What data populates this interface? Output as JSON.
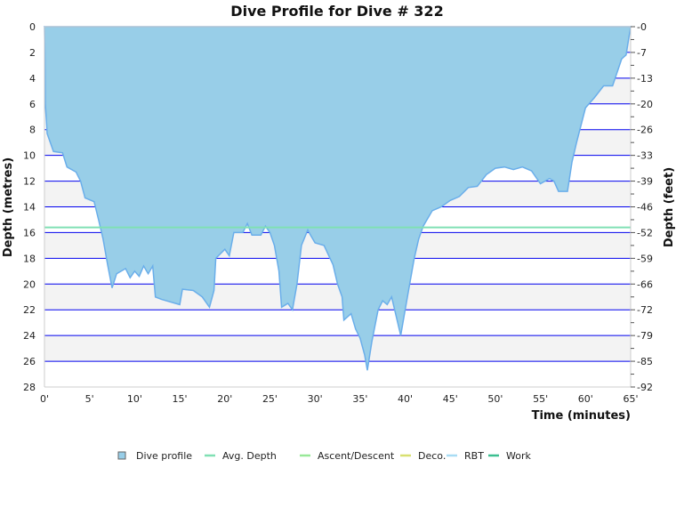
{
  "chart_data": {
    "type": "area",
    "title": "Dive Profile for Dive # 322",
    "xlabel": "Time (minutes)",
    "ylabel": "Depth (metres)",
    "ylabel_right": "Depth (feet)",
    "xlim": [
      0,
      65
    ],
    "ylim": [
      0,
      28
    ],
    "y_inverted": true,
    "x_ticks": [
      "0'",
      "5'",
      "10'",
      "15'",
      "20'",
      "25'",
      "30'",
      "35'",
      "40'",
      "45'",
      "50'",
      "55'",
      "60'",
      "65'"
    ],
    "y_ticks": [
      "0",
      "2",
      "4",
      "6",
      "8",
      "10",
      "12",
      "14",
      "16",
      "18",
      "20",
      "22",
      "24",
      "26",
      "28"
    ],
    "y_ticks_right": [
      "0",
      "7",
      "13",
      "20",
      "26",
      "33",
      "39",
      "46",
      "52",
      "59",
      "66",
      "72",
      "79",
      "85",
      "92"
    ],
    "grid": true,
    "avg_depth": 15.6,
    "colors": {
      "profile_fill": "#98cee8",
      "profile_line": "#6aaeea",
      "grid": "#0000ee",
      "band": "#f3f3f3",
      "avg": "#80e0b4",
      "ascent": "#98e898",
      "deco": "#d8e070",
      "rbt": "#a8dcf4",
      "work": "#3cbf90"
    },
    "legend": {
      "placement": "bottom",
      "items": [
        {
          "label": "Dive profile",
          "color": "#98cee8",
          "shape": "square"
        },
        {
          "label": "Avg. Depth",
          "color": "#80e0b4",
          "shape": "line"
        },
        {
          "label": "Ascent/Descent",
          "color": "#98e898",
          "shape": "line"
        },
        {
          "label": "Deco.",
          "color": "#d8e070",
          "shape": "line"
        },
        {
          "label": "RBT",
          "color": "#a8dcf4",
          "shape": "line"
        },
        {
          "label": "Work",
          "color": "#3cbf90",
          "shape": "line"
        }
      ]
    },
    "series": [
      {
        "x": [
          0,
          0.05,
          0.1,
          0.3,
          1,
          2,
          2.5,
          3.5,
          4,
          4.5,
          5.5,
          6,
          6.5,
          7,
          7.5,
          8,
          9,
          9.5,
          10,
          10.5,
          11,
          11.5,
          12,
          12.3,
          13,
          15,
          15.3,
          16.5,
          17.5,
          18.3,
          18.8,
          19,
          20,
          20.5,
          21,
          22,
          22.5,
          23,
          24,
          24.5,
          25,
          25.5,
          26,
          26.3,
          27,
          27.5,
          28,
          28.5,
          29.2,
          29.5,
          30,
          31,
          32,
          32.5,
          33,
          33.2,
          34,
          34.5,
          35,
          35.5,
          35.8,
          36.3,
          37,
          37.5,
          38,
          38.5,
          39,
          39.5,
          40,
          40.5,
          41,
          41.5,
          42,
          43,
          44,
          45,
          46,
          47,
          48,
          49,
          50,
          51,
          52,
          53,
          54,
          55,
          56,
          56.5,
          57,
          58,
          58.5,
          59,
          60,
          61,
          62,
          63,
          64,
          64.5,
          65
        ],
        "y": [
          0,
          2.2,
          6,
          8.3,
          9.7,
          9.8,
          10.9,
          11.3,
          12,
          13.3,
          13.6,
          15,
          16.5,
          18.5,
          20.3,
          19.2,
          18.8,
          19.5,
          19,
          19.4,
          18.6,
          19.2,
          18.6,
          21,
          21.2,
          21.6,
          20.4,
          20.5,
          21,
          21.8,
          20.5,
          18,
          17.3,
          17.8,
          16,
          16,
          15.3,
          16.2,
          16.2,
          15.5,
          16,
          17,
          19,
          21.8,
          21.5,
          22,
          20,
          17,
          15.8,
          16.2,
          16.8,
          17,
          18.5,
          20,
          21,
          22.8,
          22.3,
          23.5,
          24.2,
          25.5,
          26.7,
          24.5,
          22,
          21.3,
          21.6,
          21,
          22.5,
          24,
          22,
          20,
          18,
          16.5,
          15.5,
          14.3,
          14,
          13.5,
          13.2,
          12.5,
          12.4,
          11.5,
          11,
          10.9,
          11.1,
          10.9,
          11.2,
          12.2,
          11.8,
          12,
          12.8,
          12.8,
          10.5,
          9,
          6.3,
          5.5,
          4.6,
          4.6,
          2.5,
          2.2,
          0
        ]
      }
    ]
  }
}
